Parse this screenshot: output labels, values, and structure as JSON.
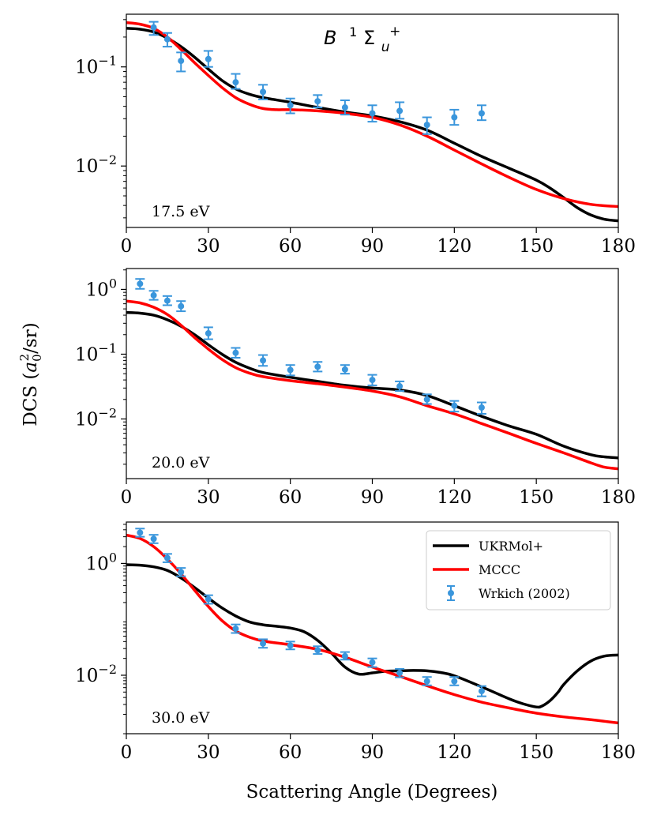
{
  "chart_data": {
    "type": "line",
    "state_label": {
      "letter": "B",
      "sup": "1",
      "sym": "Σ",
      "sub": "u",
      "plus": "+"
    },
    "xlabel": "Scattering Angle (Degrees)",
    "ylabel": {
      "prefix": "DCS (",
      "a": "a",
      "sub": "0",
      "sup": "2",
      "suffix": "/sr)"
    },
    "xlim": [
      0,
      180
    ],
    "xticks": [
      0,
      30,
      60,
      90,
      120,
      150,
      180
    ],
    "legend": {
      "placement": "top-right of bottom panel",
      "entries": [
        {
          "name": "UKRMol+",
          "kind": "line",
          "color": "#000000"
        },
        {
          "name": "MCCC",
          "kind": "line",
          "color": "#ff0000"
        },
        {
          "name": "Wrkich (2002)",
          "kind": "errorbar",
          "color": "#3a96dc"
        }
      ]
    },
    "panels": [
      {
        "energy_label": "17.5 eV",
        "ylim": [
          0.0024,
          0.34
        ],
        "yscale": "log",
        "yticks": [
          {
            "value": 0.01,
            "base": "10",
            "exp": "−2"
          },
          {
            "value": 0.1,
            "base": "10",
            "exp": "−1"
          }
        ],
        "series": [
          {
            "name": "UKRMol+",
            "x": [
              0,
              5,
              10,
              15,
              20,
              25,
              30,
              35,
              40,
              45,
              50,
              60,
              70,
              80,
              90,
              100,
              110,
              120,
              130,
              140,
              150,
              155,
              160,
              165,
              170,
              175,
              180
            ],
            "values": [
              0.245,
              0.24,
              0.225,
              0.195,
              0.16,
              0.125,
              0.095,
              0.073,
              0.06,
              0.053,
              0.049,
              0.044,
              0.039,
              0.035,
              0.032,
              0.028,
              0.023,
              0.017,
              0.0125,
              0.0095,
              0.0072,
              0.006,
              0.0048,
              0.0038,
              0.0032,
              0.0029,
              0.0028
            ]
          },
          {
            "name": "MCCC",
            "x": [
              0,
              5,
              10,
              15,
              20,
              25,
              30,
              35,
              40,
              45,
              50,
              55,
              60,
              70,
              80,
              90,
              100,
              110,
              120,
              130,
              140,
              150,
              160,
              170,
              180
            ],
            "values": [
              0.28,
              0.27,
              0.245,
              0.2,
              0.15,
              0.11,
              0.082,
              0.062,
              0.049,
              0.042,
              0.038,
              0.037,
              0.037,
              0.036,
              0.034,
              0.031,
              0.026,
              0.02,
              0.0145,
              0.0105,
              0.0077,
              0.0058,
              0.0047,
              0.0041,
              0.0039
            ]
          },
          {
            "name": "Wrkich (2002)",
            "x": [
              10,
              15,
              20,
              30,
              40,
              50,
              60,
              70,
              80,
              90,
              100,
              110,
              120,
              130
            ],
            "values": [
              0.25,
              0.19,
              0.115,
              0.12,
              0.07,
              0.056,
              0.041,
              0.045,
              0.039,
              0.034,
              0.036,
              0.026,
              0.031,
              0.034
            ],
            "err_low": [
              0.21,
              0.16,
              0.09,
              0.1,
              0.06,
              0.047,
              0.034,
              0.039,
              0.033,
              0.028,
              0.03,
              0.021,
              0.026,
              0.029
            ],
            "err_high": [
              0.285,
              0.22,
              0.14,
              0.145,
              0.085,
              0.066,
              0.048,
              0.052,
              0.046,
              0.041,
              0.044,
              0.031,
              0.037,
              0.041
            ]
          }
        ]
      },
      {
        "energy_label": "20.0 eV",
        "ylim": [
          0.0012,
          2.1
        ],
        "yscale": "log",
        "yticks": [
          {
            "value": 0.01,
            "base": "10",
            "exp": "−2"
          },
          {
            "value": 0.1,
            "base": "10",
            "exp": "−1"
          },
          {
            "value": 1,
            "base": "10",
            "exp": "0"
          }
        ],
        "series": [
          {
            "name": "UKRMol+",
            "x": [
              0,
              5,
              10,
              15,
              20,
              25,
              30,
              35,
              40,
              45,
              50,
              60,
              70,
              80,
              90,
              100,
              110,
              120,
              130,
              140,
              150,
              160,
              170,
              175,
              180
            ],
            "values": [
              0.44,
              0.43,
              0.4,
              0.34,
              0.27,
              0.2,
              0.14,
              0.1,
              0.075,
              0.061,
              0.052,
              0.044,
              0.038,
              0.033,
              0.03,
              0.028,
              0.023,
              0.016,
              0.011,
              0.0078,
              0.0058,
              0.0038,
              0.0028,
              0.0026,
              0.0025
            ]
          },
          {
            "name": "MCCC",
            "x": [
              0,
              5,
              10,
              15,
              20,
              25,
              30,
              35,
              40,
              45,
              50,
              60,
              70,
              80,
              90,
              100,
              110,
              120,
              130,
              140,
              150,
              160,
              170,
              175,
              180
            ],
            "values": [
              0.66,
              0.62,
              0.53,
              0.41,
              0.28,
              0.18,
              0.12,
              0.083,
              0.062,
              0.051,
              0.045,
              0.039,
              0.035,
              0.031,
              0.027,
              0.022,
              0.016,
              0.012,
              0.0085,
              0.006,
              0.0042,
              0.003,
              0.0021,
              0.0018,
              0.0017
            ]
          },
          {
            "name": "Wrkich (2002)",
            "x": [
              5,
              10,
              15,
              20,
              30,
              40,
              50,
              60,
              70,
              80,
              90,
              100,
              110,
              120,
              130
            ],
            "values": [
              1.22,
              0.81,
              0.67,
              0.55,
              0.21,
              0.105,
              0.08,
              0.057,
              0.064,
              0.058,
              0.04,
              0.032,
              0.02,
              0.016,
              0.015
            ],
            "err_low": [
              1.02,
              0.69,
              0.57,
              0.46,
              0.17,
              0.088,
              0.066,
              0.047,
              0.054,
              0.05,
              0.033,
              0.027,
              0.017,
              0.013,
              0.012
            ],
            "err_high": [
              1.45,
              0.95,
              0.79,
              0.66,
              0.26,
              0.125,
              0.097,
              0.068,
              0.076,
              0.068,
              0.048,
              0.038,
              0.024,
              0.019,
              0.018
            ]
          }
        ]
      },
      {
        "energy_label": "30.0 eV",
        "ylim": [
          0.0009,
          5.5
        ],
        "yscale": "log",
        "yticks": [
          {
            "value": 0.01,
            "base": "10",
            "exp": "−2"
          },
          {
            "value": 1,
            "base": "10",
            "exp": "0"
          }
        ],
        "series": [
          {
            "name": "UKRMol+",
            "x": [
              0,
              5,
              10,
              15,
              20,
              25,
              30,
              35,
              40,
              45,
              50,
              55,
              60,
              65,
              70,
              75,
              80,
              85,
              90,
              95,
              100,
              105,
              110,
              115,
              120,
              130,
              140,
              145,
              150,
              152,
              155,
              158,
              160,
              165,
              170,
              175,
              180
            ],
            "values": [
              0.95,
              0.93,
              0.87,
              0.75,
              0.55,
              0.37,
              0.24,
              0.16,
              0.115,
              0.09,
              0.08,
              0.075,
              0.07,
              0.06,
              0.042,
              0.025,
              0.014,
              0.0105,
              0.011,
              0.0118,
              0.012,
              0.0122,
              0.012,
              0.0112,
              0.0098,
              0.0062,
              0.0038,
              0.0031,
              0.0027,
              0.0028,
              0.0035,
              0.005,
              0.0068,
              0.012,
              0.018,
              0.022,
              0.023
            ]
          },
          {
            "name": "MCCC",
            "x": [
              0,
              5,
              10,
              15,
              20,
              25,
              30,
              35,
              40,
              45,
              50,
              60,
              70,
              80,
              90,
              100,
              110,
              120,
              130,
              140,
              150,
              160,
              170,
              175,
              180
            ],
            "values": [
              3.2,
              2.8,
              2.0,
              1.2,
              0.65,
              0.33,
              0.17,
              0.095,
              0.062,
              0.048,
              0.041,
              0.035,
              0.029,
              0.021,
              0.014,
              0.0096,
              0.0065,
              0.0045,
              0.0033,
              0.0026,
              0.0021,
              0.0018,
              0.0016,
              0.0015,
              0.0014
            ]
          },
          {
            "name": "Wrkich (2002)",
            "x": [
              5,
              10,
              15,
              20,
              30,
              40,
              50,
              60,
              70,
              80,
              90,
              100,
              110,
              120,
              130
            ],
            "values": [
              3.55,
              2.75,
              1.25,
              0.7,
              0.23,
              0.068,
              0.037,
              0.034,
              0.028,
              0.022,
              0.017,
              0.011,
              0.0078,
              0.0078,
              0.0052
            ],
            "err_low": [
              3.0,
              2.3,
              1.05,
              0.59,
              0.19,
              0.057,
              0.031,
              0.029,
              0.024,
              0.019,
              0.014,
              0.0092,
              0.0066,
              0.0066,
              0.0042
            ],
            "err_high": [
              4.2,
              3.25,
              1.48,
              0.83,
              0.27,
              0.081,
              0.044,
              0.04,
              0.033,
              0.026,
              0.02,
              0.013,
              0.0093,
              0.0093,
              0.0064
            ]
          }
        ]
      }
    ]
  }
}
